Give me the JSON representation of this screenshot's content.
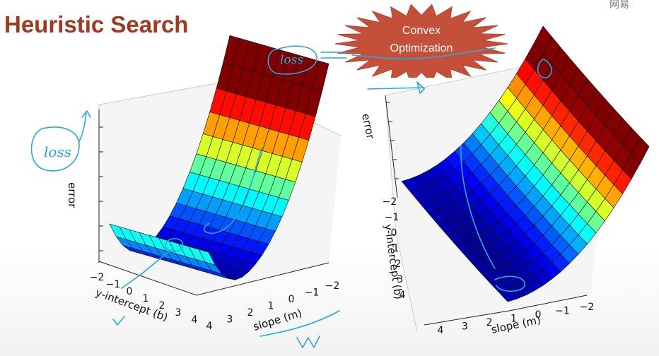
{
  "slide": {
    "title": "Heuristic Search",
    "watermark": "网易",
    "badge": {
      "line1": "Convex",
      "line2": "Optimization"
    }
  },
  "annotations": {
    "loss_left": "loss",
    "loss_right": "loss"
  },
  "plots": [
    {
      "zlabel": "error",
      "xlabel": "y-intercept (b)",
      "ylabel": "slope (m)",
      "b_ticks": [
        "−2",
        "−1",
        "0",
        "1",
        "2",
        "3",
        "4"
      ],
      "m_ticks": [
        "4",
        "3",
        "2",
        "1",
        "0",
        "−1",
        "−2"
      ]
    },
    {
      "zlabel": "error",
      "xlabel": "y-intercept (b)",
      "ylabel": "slope (m)",
      "b_ticks": [
        "−2",
        "−1",
        "0",
        "1",
        "2",
        "3",
        "4"
      ],
      "m_ticks": [
        "4",
        "3",
        "2",
        "1",
        "0",
        "−1",
        "−2"
      ]
    }
  ],
  "colors": {
    "title": "#a0391f",
    "badge_fill": "#c4503a",
    "ink": "#28a7e0"
  }
}
